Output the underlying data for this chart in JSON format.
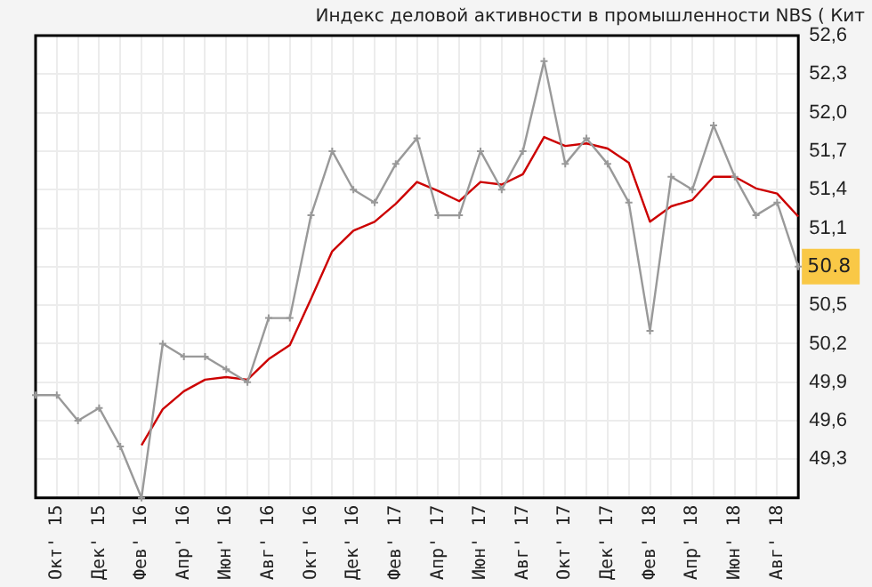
{
  "chart_data": {
    "type": "line",
    "title": "Индекс деловой активности в промышленности NBS ( Кит",
    "categories": [
      null,
      "Окт' 15",
      null,
      "Дек' 15",
      null,
      "Фев' 16",
      null,
      "Апр' 16",
      null,
      "Июн' 16",
      null,
      "Авг' 16",
      null,
      "Окт' 16",
      null,
      "Дек' 16",
      null,
      "Фев' 17",
      null,
      "Апр' 17",
      null,
      "Июн' 17",
      null,
      "Авг' 17",
      null,
      "Окт' 17",
      null,
      "Дек' 17",
      null,
      "Фев' 18",
      null,
      "Апр' 18",
      null,
      "Июн' 18",
      null,
      "Авг' 18",
      null
    ],
    "series": [
      {
        "color": "#999999",
        "marker": "cross",
        "values": [
          49.8,
          49.8,
          49.6,
          49.7,
          49.4,
          49.0,
          50.2,
          50.1,
          50.1,
          50.0,
          49.9,
          50.4,
          50.4,
          51.2,
          51.7,
          51.4,
          51.3,
          51.6,
          51.8,
          51.2,
          51.2,
          51.7,
          51.4,
          51.7,
          52.4,
          51.6,
          51.8,
          51.6,
          51.3,
          50.3,
          51.5,
          51.4,
          51.9,
          51.5,
          51.2,
          51.3,
          50.8
        ]
      },
      {
        "color": "#cc0000",
        "marker": "none",
        "values": [
          null,
          null,
          null,
          null,
          null,
          49.41,
          49.69,
          49.83,
          49.92,
          49.94,
          49.92,
          50.08,
          50.19,
          50.55,
          50.92,
          51.08,
          51.15,
          51.29,
          51.46,
          51.39,
          51.31,
          51.46,
          51.44,
          51.52,
          51.81,
          51.74,
          51.76,
          51.72,
          51.61,
          51.15,
          51.27,
          51.32,
          51.5,
          51.5,
          51.41,
          51.37,
          51.19
        ]
      }
    ],
    "ylim": [
      49.0,
      52.6
    ],
    "yticks": [
      {
        "value": 49.3,
        "label": "49,3"
      },
      {
        "value": 49.6,
        "label": "49,6"
      },
      {
        "value": 49.9,
        "label": "49,9"
      },
      {
        "value": 50.2,
        "label": "50,2"
      },
      {
        "value": 50.5,
        "label": "50,5"
      },
      {
        "value": 50.8,
        "label": null
      },
      {
        "value": 51.1,
        "label": "51,1"
      },
      {
        "value": 51.4,
        "label": "51,4"
      },
      {
        "value": 51.7,
        "label": "51,7"
      },
      {
        "value": 52.0,
        "label": "52,0"
      },
      {
        "value": 52.3,
        "label": "52,3"
      },
      {
        "value": 52.6,
        "label": "52,6"
      }
    ],
    "annotations": [
      {
        "text": "50.8",
        "y": 50.8
      }
    ],
    "grid": true,
    "legend": false
  }
}
